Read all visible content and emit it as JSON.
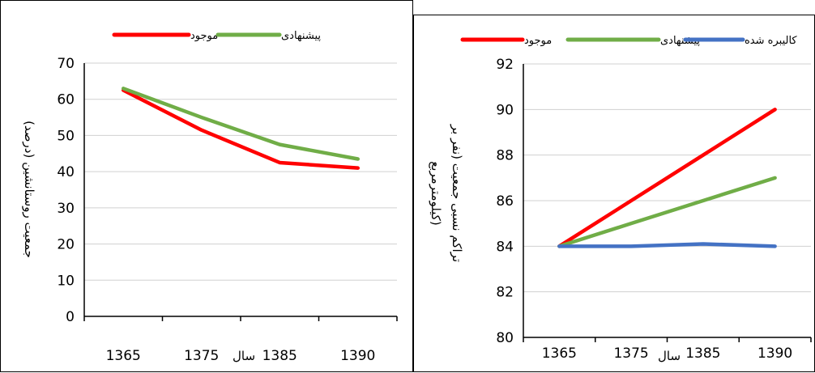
{
  "colors": {
    "existing": "#ff0000",
    "proposed": "#70ad47",
    "calibrated": "#4472c4"
  },
  "chart_data": [
    {
      "type": "line",
      "categories": [
        "1365",
        "1375",
        "1385",
        "1390"
      ],
      "xlabel": "سال",
      "ylabel": "جمعیت روستانشین (درصد)",
      "ylim": [
        0,
        70
      ],
      "yticks": [
        "0",
        "10",
        "20",
        "30",
        "40",
        "50",
        "60",
        "70"
      ],
      "grid": true,
      "legend": "top",
      "series": [
        {
          "name": "موجود",
          "color": "#ff0000",
          "values": [
            62.5,
            51.5,
            42.5,
            41
          ]
        },
        {
          "name": "پیشنهادی",
          "color": "#70ad47",
          "values": [
            63,
            55,
            47.5,
            43.5
          ]
        }
      ]
    },
    {
      "type": "line",
      "categories": [
        "1365",
        "1375",
        "1385",
        "1390"
      ],
      "xlabel": "سال",
      "ylabel": "تراکم نسبی جمعیت (نفر بر کیلومترمربع)",
      "ylabel_lines": [
        "تراکم نسبی جمعیت (نفر بر",
        "کیلومترمربع)"
      ],
      "ylim": [
        80,
        92
      ],
      "yticks": [
        "80",
        "82",
        "84",
        "86",
        "88",
        "90",
        "92"
      ],
      "grid": true,
      "legend": "top",
      "series": [
        {
          "name": "موجود",
          "color": "#ff0000",
          "values": [
            84,
            86,
            88,
            90
          ]
        },
        {
          "name": "پیشنهادی",
          "color": "#70ad47",
          "values": [
            84,
            85,
            86,
            87
          ]
        },
        {
          "name": "کالیبره شده",
          "color": "#4472c4",
          "values": [
            84,
            84,
            84.1,
            84
          ]
        }
      ]
    }
  ]
}
